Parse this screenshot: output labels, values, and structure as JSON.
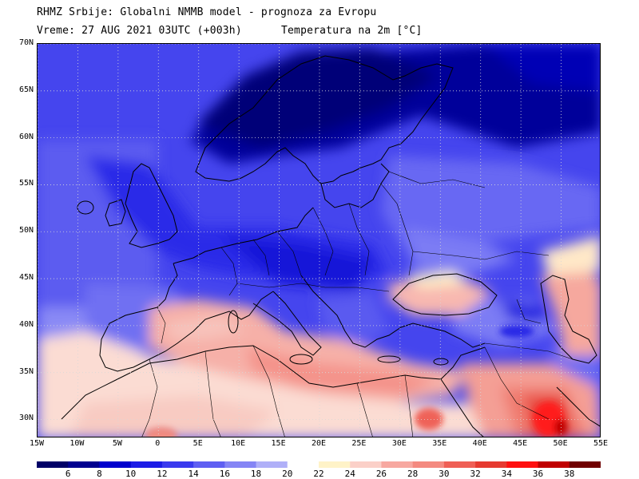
{
  "title": {
    "line1": "RHMZ Srbije: Globalni NMMB model - prognoza za Evropu",
    "line2a": "Vreme: 27 AUG 2021 03UTC (+003h)",
    "line2b": "Temperatura na 2m [°C]"
  },
  "map": {
    "lat_ticks": [
      {
        "value": 70,
        "label": "70N"
      },
      {
        "value": 65,
        "label": "65N"
      },
      {
        "value": 60,
        "label": "60N"
      },
      {
        "value": 55,
        "label": "55N"
      },
      {
        "value": 50,
        "label": "50N"
      },
      {
        "value": 45,
        "label": "45N"
      },
      {
        "value": 40,
        "label": "40N"
      },
      {
        "value": 35,
        "label": "35N"
      },
      {
        "value": 30,
        "label": "30N"
      }
    ],
    "lon_ticks": [
      {
        "value": -15,
        "label": "15W"
      },
      {
        "value": -10,
        "label": "10W"
      },
      {
        "value": -5,
        "label": "5W"
      },
      {
        "value": 0,
        "label": "0"
      },
      {
        "value": 5,
        "label": "5E"
      },
      {
        "value": 10,
        "label": "10E"
      },
      {
        "value": 15,
        "label": "15E"
      },
      {
        "value": 20,
        "label": "20E"
      },
      {
        "value": 25,
        "label": "25E"
      },
      {
        "value": 30,
        "label": "30E"
      },
      {
        "value": 35,
        "label": "35E"
      },
      {
        "value": 40,
        "label": "40E"
      },
      {
        "value": 45,
        "label": "45E"
      },
      {
        "value": 50,
        "label": "50E"
      },
      {
        "value": 55,
        "label": "55E"
      }
    ],
    "lon_range": [
      -15,
      55
    ],
    "lat_range": [
      28,
      70
    ],
    "grid": "dotted"
  },
  "colorbar": {
    "colors": [
      "#000066",
      "#00008f",
      "#0000cd",
      "#1c1ce6",
      "#3a3aee",
      "#5f5ff2",
      "#8585f5",
      "#b0b0f8",
      "#ffffff",
      "#fff3c8",
      "#fbd0c8",
      "#f7a8a0",
      "#f48a80",
      "#ef5f55",
      "#e63a30",
      "#ff1010",
      "#c00000",
      "#700000"
    ],
    "labels": [
      "6",
      "8",
      "10",
      "12",
      "14",
      "16",
      "18",
      "20",
      "22",
      "24",
      "26",
      "28",
      "30",
      "32",
      "34",
      "36",
      "38"
    ]
  }
}
